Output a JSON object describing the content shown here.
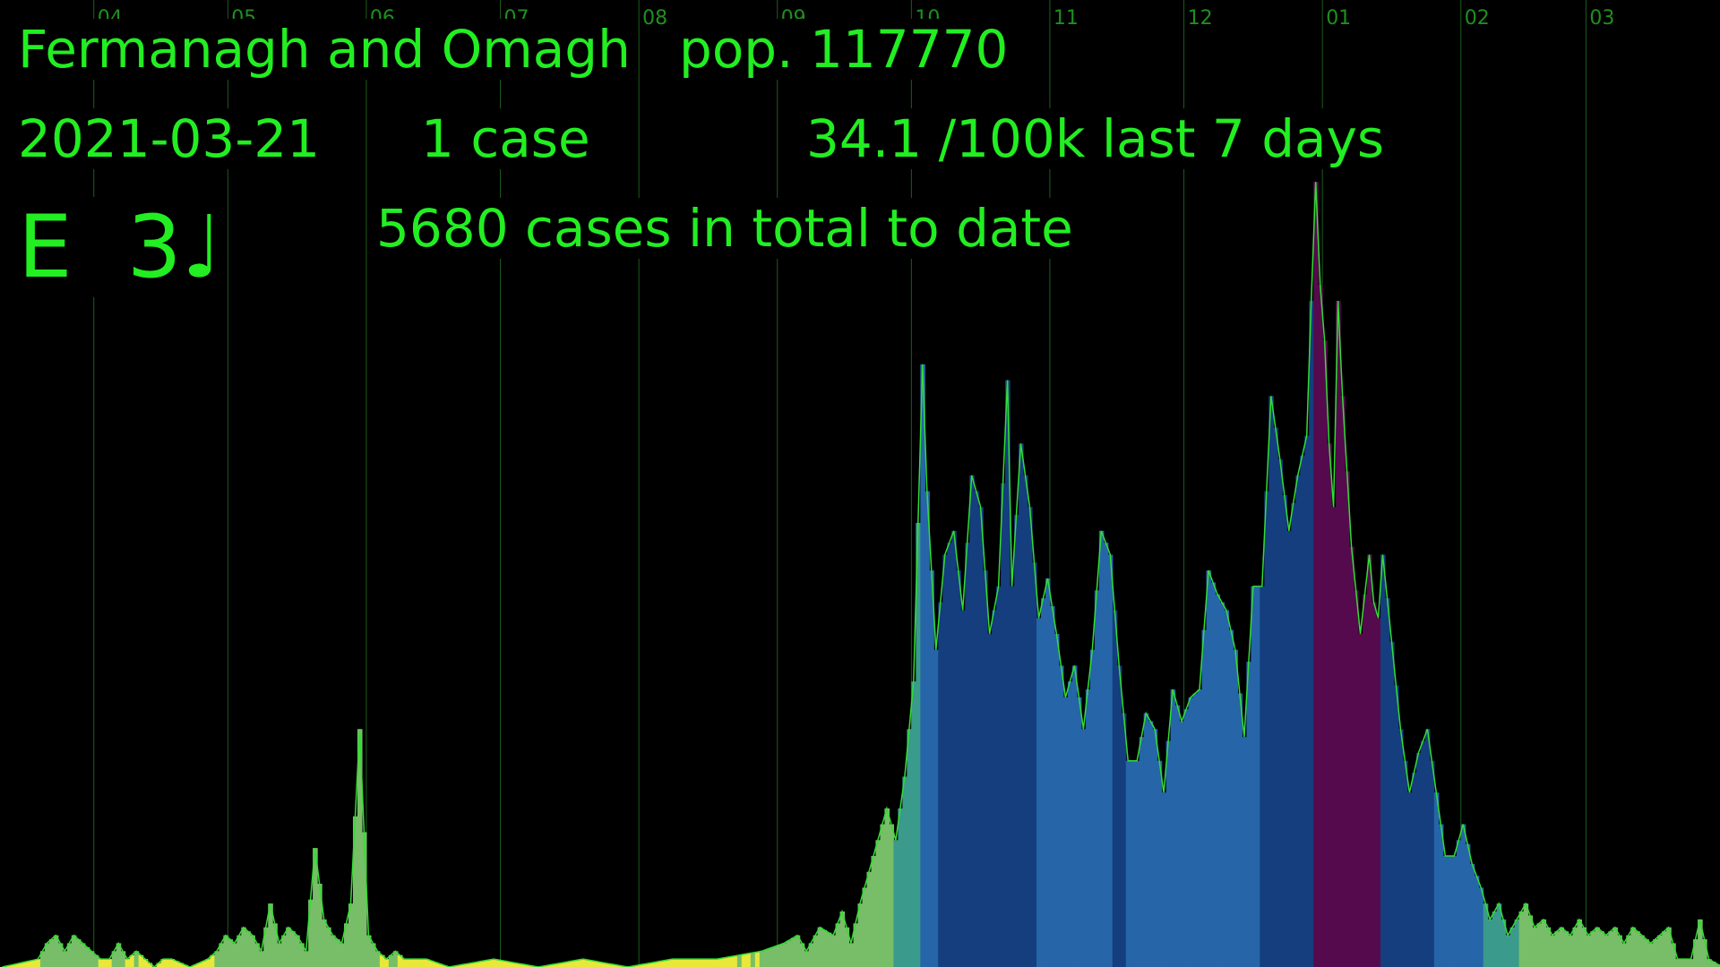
{
  "header": {
    "area_name": "Fermanagh and Omagh",
    "population": "pop. 117770",
    "date": "2021-03-21",
    "case_count": "1 case",
    "rate": "34.1 /100k last 7 days",
    "note": "E  3♩",
    "total": "5680 cases in total to date"
  },
  "colors": {
    "background": "#000000",
    "text": "#22ee22",
    "gridline": "#1e5c1e",
    "month_label": "#1f8f1f",
    "line": "#33dd33",
    "level_low": "#e8e83a",
    "level_mid": "#78be68",
    "level_teal": "#3a9a8c",
    "level_blue": "#2565a8",
    "level_navy": "#143e7e",
    "level_peak": "#560a4e"
  },
  "chart_data": {
    "type": "bar",
    "title": "",
    "xlabel": "",
    "ylabel": "",
    "x_unit": "days since 2020-03-01",
    "x_range": [
      0,
      385
    ],
    "ylim": [
      0,
      105
    ],
    "grid": true,
    "month_ticks": [
      {
        "day": 21,
        "label": "04"
      },
      {
        "day": 51,
        "label": "05"
      },
      {
        "day": 82,
        "label": "06"
      },
      {
        "day": 112,
        "label": "07"
      },
      {
        "day": 143,
        "label": "08"
      },
      {
        "day": 174,
        "label": "09"
      },
      {
        "day": 204,
        "label": "10"
      },
      {
        "day": 235,
        "label": "11"
      },
      {
        "day": 265,
        "label": "12"
      },
      {
        "day": 296,
        "label": "01"
      },
      {
        "day": 327,
        "label": "02"
      },
      {
        "day": 355,
        "label": "03"
      }
    ],
    "daily_cases_anchors": [
      [
        0,
        0
      ],
      [
        8,
        1
      ],
      [
        10,
        3
      ],
      [
        12,
        4
      ],
      [
        14,
        2
      ],
      [
        16,
        4
      ],
      [
        18,
        3
      ],
      [
        20,
        2
      ],
      [
        22,
        1
      ],
      [
        24,
        1
      ],
      [
        26,
        3
      ],
      [
        28,
        1
      ],
      [
        30,
        2
      ],
      [
        32,
        1
      ],
      [
        34,
        0
      ],
      [
        36,
        1
      ],
      [
        38,
        1
      ],
      [
        42,
        0
      ],
      [
        46,
        1
      ],
      [
        48,
        2
      ],
      [
        50,
        4
      ],
      [
        52,
        3
      ],
      [
        54,
        5
      ],
      [
        56,
        4
      ],
      [
        58,
        2
      ],
      [
        60,
        8
      ],
      [
        62,
        3
      ],
      [
        64,
        5
      ],
      [
        66,
        4
      ],
      [
        68,
        2
      ],
      [
        70,
        15
      ],
      [
        72,
        6
      ],
      [
        74,
        4
      ],
      [
        76,
        3
      ],
      [
        78,
        8
      ],
      [
        80,
        30
      ],
      [
        82,
        4
      ],
      [
        84,
        2
      ],
      [
        86,
        1
      ],
      [
        88,
        2
      ],
      [
        90,
        1
      ],
      [
        95,
        1
      ],
      [
        100,
        0
      ],
      [
        110,
        1
      ],
      [
        120,
        0
      ],
      [
        130,
        1
      ],
      [
        140,
        0
      ],
      [
        150,
        1
      ],
      [
        160,
        1
      ],
      [
        170,
        2
      ],
      [
        175,
        3
      ],
      [
        178,
        4
      ],
      [
        180,
        2
      ],
      [
        183,
        5
      ],
      [
        186,
        4
      ],
      [
        188,
        7
      ],
      [
        190,
        3
      ],
      [
        192,
        8
      ],
      [
        194,
        12
      ],
      [
        196,
        16
      ],
      [
        198,
        20
      ],
      [
        200,
        16
      ],
      [
        202,
        24
      ],
      [
        204,
        36
      ],
      [
        206,
        76
      ],
      [
        207,
        60
      ],
      [
        209,
        40
      ],
      [
        211,
        52
      ],
      [
        213,
        55
      ],
      [
        215,
        45
      ],
      [
        217,
        62
      ],
      [
        219,
        58
      ],
      [
        221,
        42
      ],
      [
        223,
        48
      ],
      [
        225,
        74
      ],
      [
        226,
        48
      ],
      [
        228,
        66
      ],
      [
        230,
        58
      ],
      [
        232,
        44
      ],
      [
        234,
        49
      ],
      [
        236,
        42
      ],
      [
        238,
        34
      ],
      [
        240,
        38
      ],
      [
        242,
        30
      ],
      [
        244,
        40
      ],
      [
        246,
        55
      ],
      [
        248,
        52
      ],
      [
        250,
        38
      ],
      [
        252,
        26
      ],
      [
        254,
        26
      ],
      [
        256,
        32
      ],
      [
        258,
        30
      ],
      [
        260,
        22
      ],
      [
        262,
        35
      ],
      [
        264,
        31
      ],
      [
        266,
        34
      ],
      [
        268,
        35
      ],
      [
        270,
        50
      ],
      [
        272,
        47
      ],
      [
        274,
        45
      ],
      [
        276,
        40
      ],
      [
        278,
        29
      ],
      [
        280,
        48
      ],
      [
        282,
        48
      ],
      [
        284,
        72
      ],
      [
        286,
        64
      ],
      [
        288,
        55
      ],
      [
        290,
        62
      ],
      [
        292,
        67
      ],
      [
        293,
        84
      ],
      [
        294,
        99
      ],
      [
        295,
        86
      ],
      [
        296,
        79
      ],
      [
        297,
        66
      ],
      [
        298,
        58
      ],
      [
        299,
        84
      ],
      [
        300,
        72
      ],
      [
        302,
        53
      ],
      [
        304,
        42
      ],
      [
        306,
        52
      ],
      [
        307,
        46
      ],
      [
        308,
        44
      ],
      [
        309,
        52
      ],
      [
        311,
        41
      ],
      [
        313,
        30
      ],
      [
        315,
        22
      ],
      [
        317,
        27
      ],
      [
        319,
        30
      ],
      [
        321,
        22
      ],
      [
        323,
        14
      ],
      [
        325,
        14
      ],
      [
        327,
        18
      ],
      [
        329,
        13
      ],
      [
        331,
        10
      ],
      [
        333,
        6
      ],
      [
        335,
        8
      ],
      [
        337,
        4
      ],
      [
        339,
        6
      ],
      [
        341,
        8
      ],
      [
        343,
        5
      ],
      [
        345,
        6
      ],
      [
        347,
        4
      ],
      [
        349,
        5
      ],
      [
        351,
        4
      ],
      [
        353,
        6
      ],
      [
        355,
        4
      ],
      [
        357,
        5
      ],
      [
        359,
        4
      ],
      [
        361,
        5
      ],
      [
        363,
        3
      ],
      [
        365,
        5
      ],
      [
        367,
        4
      ],
      [
        369,
        3
      ],
      [
        371,
        4
      ],
      [
        373,
        5
      ],
      [
        375,
        1
      ],
      [
        378,
        1
      ],
      [
        380,
        6
      ],
      [
        382,
        1
      ],
      [
        385,
        0
      ]
    ],
    "rate_bands": [
      {
        "from": 0,
        "to": 185,
        "level": "low-mid"
      },
      {
        "from": 185,
        "to": 200,
        "level": "mid"
      },
      {
        "from": 200,
        "to": 206,
        "level": "teal"
      },
      {
        "from": 206,
        "to": 210,
        "level": "blue"
      },
      {
        "from": 210,
        "to": 232,
        "level": "navy"
      },
      {
        "from": 232,
        "to": 234,
        "level": "blue"
      },
      {
        "from": 234,
        "to": 249,
        "level": "blue"
      },
      {
        "from": 249,
        "to": 252,
        "level": "navy"
      },
      {
        "from": 252,
        "to": 282,
        "level": "blue"
      },
      {
        "from": 282,
        "to": 294,
        "level": "navy"
      },
      {
        "from": 294,
        "to": 309,
        "level": "peak"
      },
      {
        "from": 309,
        "to": 321,
        "level": "navy"
      },
      {
        "from": 321,
        "to": 332,
        "level": "blue"
      },
      {
        "from": 332,
        "to": 340,
        "level": "teal"
      },
      {
        "from": 340,
        "to": 385,
        "level": "mid"
      }
    ]
  }
}
